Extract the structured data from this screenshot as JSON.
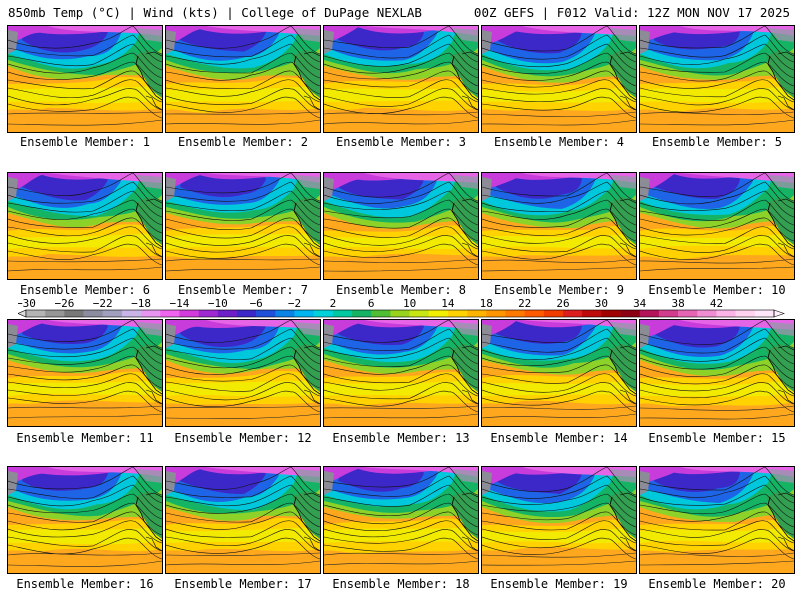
{
  "header": {
    "left": "850mb Temp (°C) | Wind (kts) | College of DuPage NEXLAB",
    "right": "00Z GEFS | F012 Valid: 12Z MON NOV 17 2025"
  },
  "members": [
    "Ensemble Member: 1",
    "Ensemble Member: 2",
    "Ensemble Member: 3",
    "Ensemble Member: 4",
    "Ensemble Member: 5",
    "Ensemble Member: 6",
    "Ensemble Member: 7",
    "Ensemble Member: 8",
    "Ensemble Member: 9",
    "Ensemble Member: 10",
    "Ensemble Member: 11",
    "Ensemble Member: 12",
    "Ensemble Member: 13",
    "Ensemble Member: 14",
    "Ensemble Member: 15",
    "Ensemble Member: 16",
    "Ensemble Member: 17",
    "Ensemble Member: 18",
    "Ensemble Member: 19",
    "Ensemble Member: 20"
  ],
  "colorbar": {
    "tick_labels": [
      "−30",
      "−26",
      "−22",
      "−18",
      "−14",
      "−10",
      "−6",
      "−2",
      "2",
      "6",
      "10",
      "14",
      "18",
      "22",
      "26",
      "30",
      "34",
      "38",
      "42"
    ],
    "colors": [
      "#b4b4b4",
      "#969696",
      "#787878",
      "#8c8ca0",
      "#a0a0be",
      "#c8b4e6",
      "#e696f0",
      "#f064f0",
      "#d23cdc",
      "#a028d2",
      "#6e1ec8",
      "#3c28c8",
      "#1e50dc",
      "#0a82e6",
      "#00b4f0",
      "#00d2dc",
      "#00c8a0",
      "#14b464",
      "#50be32",
      "#96d21e",
      "#c8e614",
      "#f0f000",
      "#ffd200",
      "#ffb400",
      "#ff9600",
      "#ff7800",
      "#ff5a00",
      "#f03c00",
      "#dc1e1e",
      "#be0a0a",
      "#a00000",
      "#8c0014",
      "#b4145a",
      "#d23c8c",
      "#e664b4",
      "#f08cd2",
      "#fab4e6",
      "#ffd2f0",
      "#ffe6f8"
    ]
  }
}
